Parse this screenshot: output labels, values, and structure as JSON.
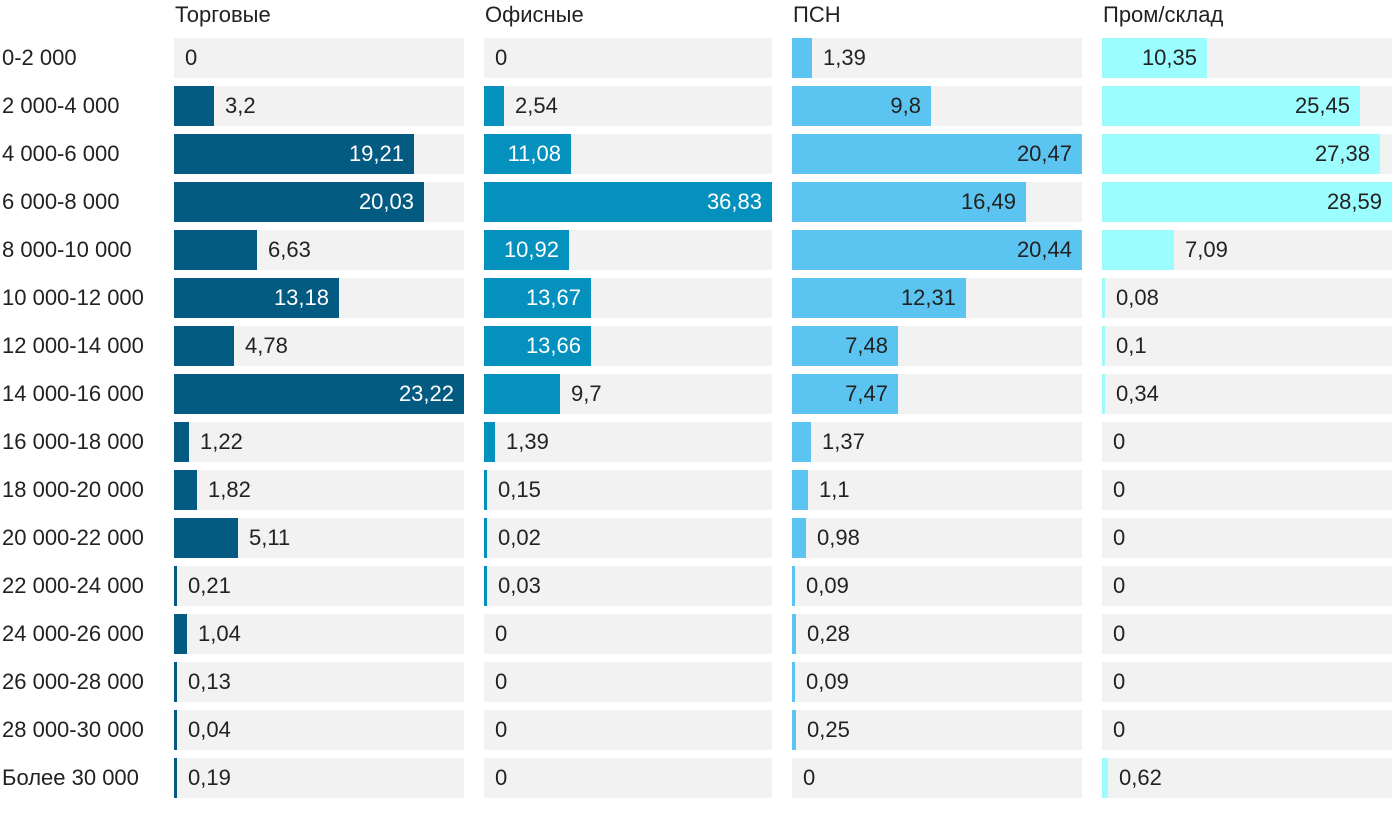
{
  "chart_data": {
    "type": "bar",
    "orientation": "horizontal",
    "layout": "small-multiples",
    "categories": [
      "0-2 000",
      "2 000-4 000",
      "4 000-6 000",
      "6 000-8 000",
      "8 000-10 000",
      "10 000-12 000",
      "12 000-14 000",
      "14 000-16 000",
      "16 000-18 000",
      "18 000-20 000",
      "20 000-22 000",
      "22 000-24 000",
      "24 000-26 000",
      "26 000-28 000",
      "28 000-30 000",
      "Более 30 000"
    ],
    "series": [
      {
        "name": "Торговые",
        "color": "#045b82",
        "label_dark": false,
        "max": 23.22,
        "values": [
          0,
          3.2,
          19.21,
          20.03,
          6.63,
          13.18,
          4.78,
          23.22,
          1.22,
          1.82,
          5.11,
          0.21,
          1.04,
          0.13,
          0.04,
          0.19
        ],
        "labels": [
          "0",
          "3,2",
          "19,21",
          "20,03",
          "6,63",
          "13,18",
          "4,78",
          "23,22",
          "1,22",
          "1,82",
          "5,11",
          "0,21",
          "1,04",
          "0,13",
          "0,04",
          "0,19"
        ]
      },
      {
        "name": "Офисные",
        "color": "#0591bd",
        "label_dark": false,
        "max": 36.83,
        "values": [
          0,
          2.54,
          11.08,
          36.83,
          10.92,
          13.67,
          13.66,
          9.7,
          1.39,
          0.15,
          0.02,
          0.03,
          0,
          0,
          0,
          0
        ],
        "labels": [
          "0",
          "2,54",
          "11,08",
          "36,83",
          "10,92",
          "13,67",
          "13,66",
          "9,7",
          "1,39",
          "0,15",
          "0,02",
          "0,03",
          "0",
          "0",
          "0",
          "0"
        ]
      },
      {
        "name": "ПСН",
        "color": "#5bc4f1",
        "label_dark": true,
        "max": 20.47,
        "values": [
          1.39,
          9.8,
          20.47,
          16.49,
          20.44,
          12.31,
          7.48,
          7.47,
          1.37,
          1.1,
          0.98,
          0.09,
          0.28,
          0.09,
          0.25,
          0
        ],
        "labels": [
          "1,39",
          "9,8",
          "20,47",
          "16,49",
          "20,44",
          "12,31",
          "7,48",
          "7,47",
          "1,37",
          "1,1",
          "0,98",
          "0,09",
          "0,28",
          "0,09",
          "0,25",
          "0"
        ]
      },
      {
        "name": "Пром/склад",
        "color": "#9bfdfd",
        "label_dark": true,
        "max": 28.59,
        "values": [
          10.35,
          25.45,
          27.38,
          28.59,
          7.09,
          0.08,
          0.1,
          0.34,
          0,
          0,
          0,
          0,
          0,
          0,
          0,
          0.62
        ],
        "labels": [
          "10,35",
          "25,45",
          "27,38",
          "28,59",
          "7,09",
          "0,08",
          "0,1",
          "0,34",
          "0",
          "0",
          "0",
          "0",
          "0",
          "0",
          "0",
          "0,62"
        ]
      }
    ]
  }
}
